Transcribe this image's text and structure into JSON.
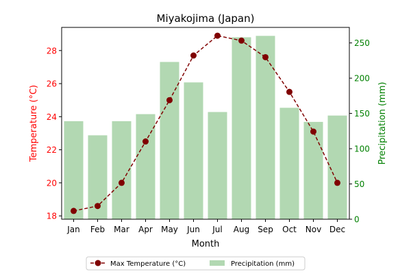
{
  "chart_data": {
    "type": "bar",
    "title": "Miyakojima (Japan)",
    "xlabel": "Month",
    "categories": [
      "Jan",
      "Feb",
      "Mar",
      "Apr",
      "May",
      "Jun",
      "Jul",
      "Aug",
      "Sep",
      "Oct",
      "Nov",
      "Dec"
    ],
    "y_left": {
      "label": "Temperature (°C)",
      "ylim": [
        17.8,
        29.4
      ],
      "ticks": [
        18,
        20,
        22,
        24,
        26,
        28
      ],
      "color": "#ff0000"
    },
    "y_right": {
      "label": "Precipitation (mm)",
      "ylim": [
        0,
        272
      ],
      "ticks": [
        0,
        50,
        100,
        150,
        200,
        250
      ],
      "color": "#008000"
    },
    "series": [
      {
        "name": "Max Temperature (°C)",
        "kind": "line",
        "axis": "left",
        "color": "#800000",
        "values": [
          18.3,
          18.6,
          20.0,
          22.5,
          25.0,
          27.7,
          28.9,
          28.6,
          27.6,
          25.5,
          23.1,
          20.0
        ]
      },
      {
        "name": "Precipitation (mm)",
        "kind": "bar",
        "axis": "right",
        "color": "#b2d8b2",
        "values": [
          139,
          119,
          139,
          149,
          223,
          194,
          152,
          258,
          260,
          158,
          138,
          147
        ]
      }
    ],
    "legend_position": "bottom-center",
    "grid": false
  }
}
